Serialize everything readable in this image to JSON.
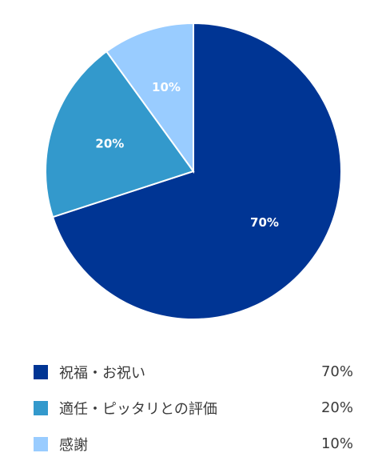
{
  "chart_data": {
    "type": "pie",
    "categories": [
      "祝福・お祝い",
      "適任・ピッタリとの評価",
      "感謝"
    ],
    "values": [
      70,
      20,
      10
    ],
    "value_labels": [
      "70%",
      "20%",
      "10%"
    ],
    "colors": [
      "#003594",
      "#3399cc",
      "#99ccff"
    ],
    "legend_placement": "bottom"
  },
  "legend": {
    "items": [
      {
        "label": "祝福・お祝い",
        "value": "70%",
        "color": "#003594"
      },
      {
        "label": "適任・ピッタリとの評価",
        "value": "20%",
        "color": "#3399cc"
      },
      {
        "label": "感謝",
        "value": "10%",
        "color": "#99ccff"
      }
    ]
  }
}
